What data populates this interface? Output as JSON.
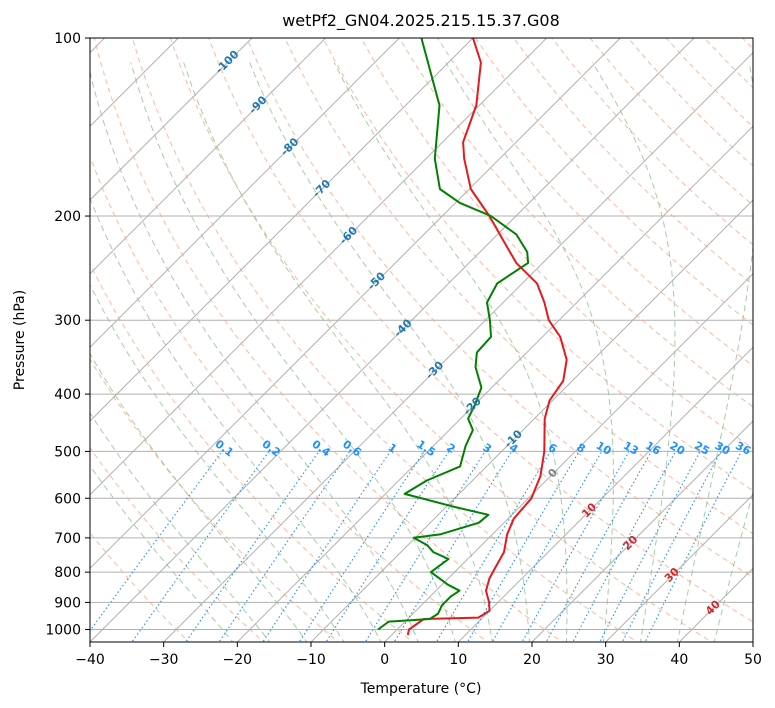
{
  "chart_data": {
    "type": "line",
    "subtype": "skew-t log-p diagram",
    "title": "wetPf2_GN04.2025.215.15.37.G08",
    "xlabel": "Temperature (°C)",
    "ylabel": "Pressure (hPa)",
    "xlim": [
      -40,
      50
    ],
    "ylim": [
      1050,
      100
    ],
    "y_scale": "log",
    "grid": true,
    "x_ticks": [
      -40,
      -30,
      -20,
      -10,
      0,
      10,
      20,
      30,
      40,
      50
    ],
    "y_ticks": [
      1000,
      900,
      800,
      700,
      600,
      500,
      400,
      300,
      200,
      100
    ],
    "colors": {
      "temperature": "#e41a1c",
      "dewpoint": "#008000",
      "isotherm_labels": "#1f77b4",
      "mixing_ratio": "#1e90ff",
      "moist_adiabat_labels": "#d62728",
      "dry_adiabat": "#ffa07a",
      "moist_adiabat": "#90c090",
      "grid": "#b0b0b0"
    },
    "isotherm_labels": [
      "-100",
      "-90",
      "-80",
      "-70",
      "-60",
      "-50",
      "-40",
      "-30",
      "-20",
      "-10",
      "0",
      "10",
      "20",
      "30",
      "40"
    ],
    "mixing_ratio_labels": [
      "0.1",
      "0.2",
      "0.4",
      "0.6",
      "1",
      "1.5",
      "2",
      "3",
      "4",
      "6",
      "8",
      "10",
      "13",
      "16",
      "20",
      "25",
      "30",
      "36"
    ],
    "moist_adiabat_labels": [
      "10",
      "20",
      "30",
      "40"
    ],
    "series": [
      {
        "name": "Temperature",
        "color": "#e41a1c",
        "points": [
          [
            1022,
            2.2
          ],
          [
            1000,
            1.6
          ],
          [
            960,
            2.2
          ],
          [
            955,
            9.4
          ],
          [
            930,
            10.0
          ],
          [
            900,
            8.8
          ],
          [
            860,
            6.8
          ],
          [
            820,
            5.6
          ],
          [
            790,
            5.0
          ],
          [
            740,
            4.0
          ],
          [
            690,
            2.0
          ],
          [
            650,
            0.8
          ],
          [
            600,
            0.4
          ],
          [
            550,
            -1.4
          ],
          [
            500,
            -4.2
          ],
          [
            440,
            -8.6
          ],
          [
            410,
            -10.4
          ],
          [
            380,
            -11.2
          ],
          [
            350,
            -13.6
          ],
          [
            320,
            -17.6
          ],
          [
            300,
            -21.4
          ],
          [
            280,
            -24.4
          ],
          [
            260,
            -28.0
          ],
          [
            240,
            -33.6
          ],
          [
            220,
            -38.4
          ],
          [
            200,
            -43.6
          ],
          [
            180,
            -49.8
          ],
          [
            160,
            -54.8
          ],
          [
            150,
            -57.2
          ],
          [
            130,
            -60.4
          ],
          [
            110,
            -65.6
          ],
          [
            100,
            -70.0
          ]
        ]
      },
      {
        "name": "Dewpoint",
        "color": "#008000",
        "points": [
          [
            1000,
            -2.6
          ],
          [
            970,
            -2.2
          ],
          [
            960,
            3.0
          ],
          [
            940,
            3.4
          ],
          [
            910,
            2.8
          ],
          [
            880,
            2.8
          ],
          [
            860,
            3.2
          ],
          [
            840,
            0.8
          ],
          [
            800,
            -3.2
          ],
          [
            760,
            -2.6
          ],
          [
            740,
            -5.6
          ],
          [
            720,
            -7.4
          ],
          [
            700,
            -10.2
          ],
          [
            690,
            -7.0
          ],
          [
            660,
            -3.4
          ],
          [
            640,
            -3.2
          ],
          [
            620,
            -9.0
          ],
          [
            590,
            -17.4
          ],
          [
            560,
            -16.2
          ],
          [
            530,
            -13.6
          ],
          [
            490,
            -15.6
          ],
          [
            460,
            -16.8
          ],
          [
            440,
            -19.0
          ],
          [
            420,
            -19.8
          ],
          [
            390,
            -21.4
          ],
          [
            360,
            -25.0
          ],
          [
            340,
            -26.8
          ],
          [
            320,
            -27.0
          ],
          [
            300,
            -29.4
          ],
          [
            280,
            -32.2
          ],
          [
            260,
            -33.4
          ],
          [
            240,
            -32.0
          ],
          [
            230,
            -33.6
          ],
          [
            215,
            -37.4
          ],
          [
            200,
            -43.4
          ],
          [
            190,
            -49.4
          ],
          [
            180,
            -54.0
          ],
          [
            160,
            -58.8
          ],
          [
            130,
            -65.4
          ],
          [
            100,
            -77.0
          ]
        ]
      }
    ]
  }
}
